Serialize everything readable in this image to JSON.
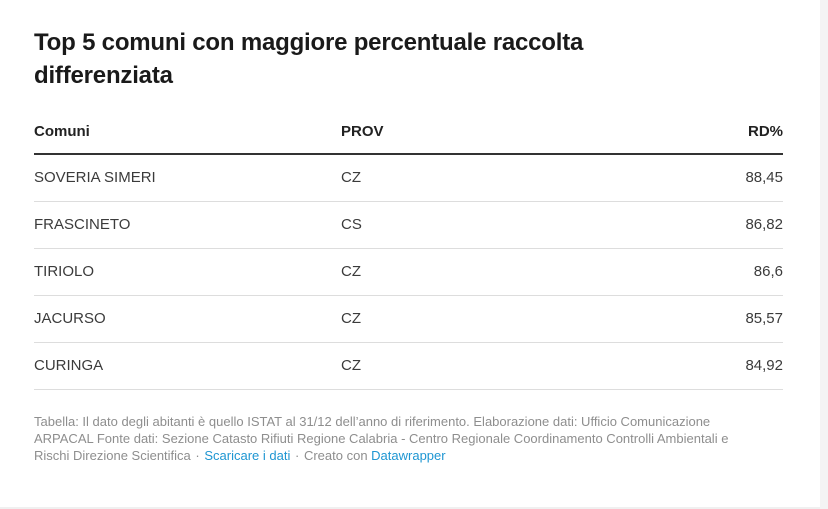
{
  "chart_data": {
    "type": "table",
    "title": "Top 5 comuni con maggiore percentuale raccolta differenziata",
    "columns": [
      "Comuni",
      "PROV",
      "RD%"
    ],
    "rows": [
      [
        "SOVERIA SIMERI",
        "CZ",
        "88,45"
      ],
      [
        "FRASCINETO",
        "CS",
        "86,82"
      ],
      [
        "TIRIOLO",
        "CZ",
        "86,6"
      ],
      [
        "JACURSO",
        "CZ",
        "85,57"
      ],
      [
        "CURINGA",
        "CZ",
        "84,92"
      ]
    ],
    "layout_hints": {
      "value_alignment": "RD% column right-aligned, decimal comma (Italian locale)",
      "header_rule": "2px dark rule under header",
      "row_rule": "1px light rule between rows"
    }
  },
  "footer": {
    "notes": "Tabella: Il dato degli abitanti è quello ISTAT al 31/12 dell’anno di riferimento. Elaborazione dati: Ufficio Comunicazione ARPACAL Fonte dati: Sezione Catasto Rifiuti Regione Calabria - Centro Regionale Coordinamento Controlli Ambientali e Rischi Direzione Scientifica",
    "separator": "·",
    "download_link_label": "Scaricare i dati",
    "created_with": "Creato con",
    "datawrapper_link_label": "Datawrapper"
  },
  "colors": {
    "link_blue": "#1e96d2",
    "title_text": "#1a1a1a",
    "header_text": "#222222",
    "body_text": "#3b3b3b",
    "muted_text": "#8e8e8e",
    "header_rule": "#333333",
    "row_rule": "#dddddd",
    "page_edge": "#f4f4f4",
    "background": "#ffffff"
  }
}
